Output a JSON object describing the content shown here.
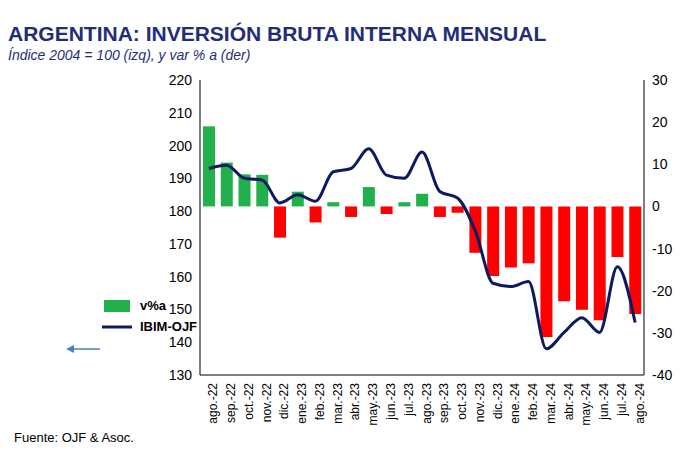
{
  "chart_data": {
    "type": "bar",
    "title": "ARGENTINA: INVERSIÓN BRUTA INTERNA MENSUAL",
    "subtitle": "Índice 2004 = 100 (izq), y var % a (der)",
    "annotations": [
      "Fuente: OJF & Asoc."
    ],
    "categories": [
      "ago.-22",
      "sep.-22",
      "oct.-22",
      "nov.-22",
      "dic.-22",
      "ene.-23",
      "feb.-23",
      "mar.-23",
      "abr.-23",
      "may.-23",
      "jun.-23",
      "jul.-23",
      "ago.-23",
      "sep.-23",
      "oct.-23",
      "nov.-23",
      "dic.-23",
      "ene.-24",
      "feb.-24",
      "mar.-24",
      "abr.-24",
      "may.-24",
      "jun.-24",
      "jul.-24",
      "ago.-24"
    ],
    "series": [
      {
        "name": "v%a",
        "type": "bar",
        "axis": "y2",
        "color": "#21b04b",
        "colors": [
          "#21b04b",
          "#21b04b",
          "#21b04b",
          "#21b04b",
          "#ff0000",
          "#21b04b",
          "#ff0000",
          "#21b04b",
          "#ff0000",
          "#21b04b",
          "#ff0000",
          "#21b04b",
          "#21b04b",
          "#ff0000",
          "#ff0000",
          "#ff0000",
          "#ff0000",
          "#ff0000",
          "#ff0000",
          "#ff0000",
          "#ff0000",
          "#ff0000",
          "#ff0000",
          "#ff0000",
          "#ff0000"
        ],
        "values": [
          19,
          10.4,
          7.6,
          7.5,
          -7.4,
          3.5,
          -3.8,
          1,
          -2.5,
          4.6,
          -1.8,
          1,
          3,
          -2.5,
          -1.5,
          -11,
          -16.5,
          -14.5,
          -13.5,
          -31,
          -22.5,
          -24.5,
          -27,
          -12,
          -25.5
        ]
      },
      {
        "name": "IBIM-OJF",
        "type": "line",
        "color": "#0d1a63",
        "values": [
          193,
          194,
          190,
          189.5,
          182.5,
          185,
          183,
          192,
          193,
          199,
          191,
          190,
          198,
          186,
          184,
          174,
          158,
          157,
          158.5,
          138,
          143,
          147.5,
          143,
          163,
          146
        ]
      }
    ],
    "ylim": [
      130,
      220
    ],
    "yticks": [
      130,
      140,
      150,
      160,
      170,
      180,
      190,
      200,
      210,
      220
    ],
    "y2lim": [
      -40,
      30
    ],
    "y2ticks": [
      -40,
      -30,
      -20,
      -10,
      0,
      10,
      20,
      30
    ],
    "legend": "lower left",
    "grid": false
  }
}
